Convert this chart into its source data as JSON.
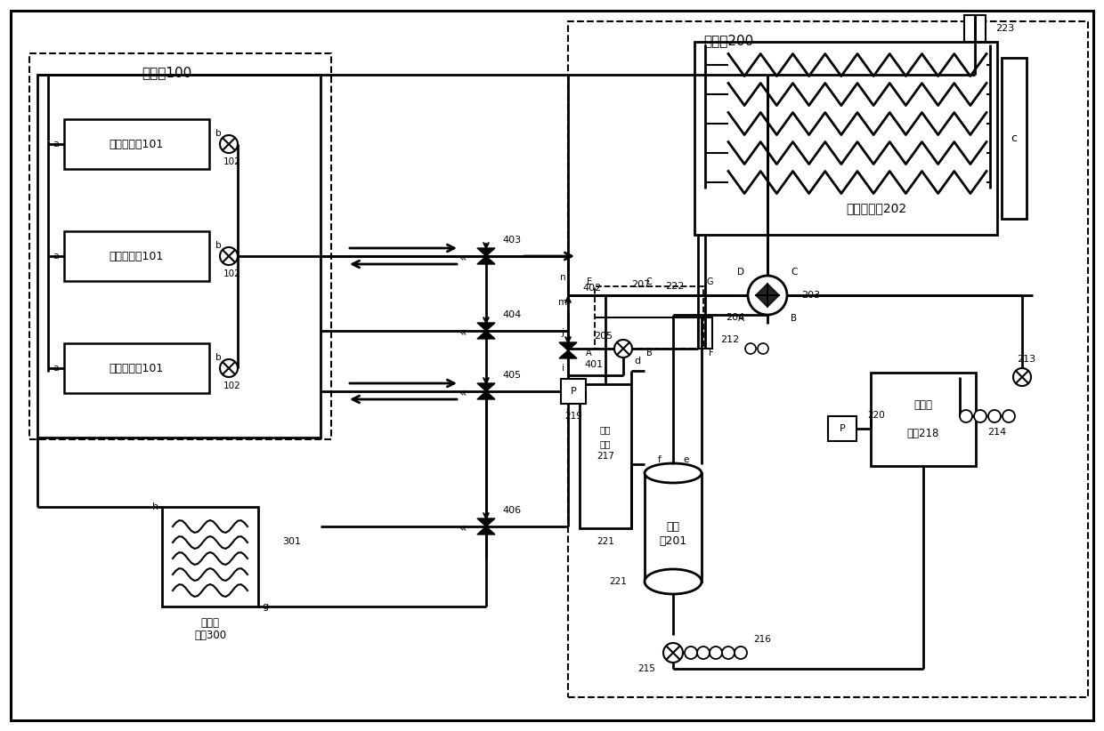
{
  "bg": "#ffffff",
  "lc": "#000000",
  "indoor_label": "室内机100",
  "outdoor_label": "室外机200",
  "hx_in_label": "室内换热器101",
  "hx_out_label": "室外换热器202",
  "hwg_label1": "热水发",
  "hwg_label2": "生器300",
  "comp_label1": "压缩",
  "comp_label2": "机201",
  "oil_label1": "油分",
  "oil_label2": "离器",
  "oil_label3": "217",
  "gas_label1": "气液分",
  "gas_label2": "离器218"
}
